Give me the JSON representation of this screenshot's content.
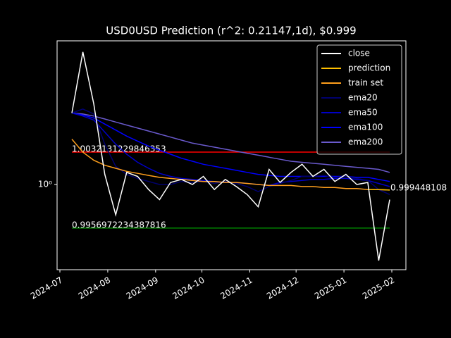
{
  "chart_data": {
    "type": "line",
    "title": "USD0USD Prediction (r^2: 0.21147,1d), $0.999",
    "log_y": true,
    "ylim": [
      0.9916,
      1.01432
    ],
    "yticks": [
      {
        "value": 1,
        "label": "10⁰"
      }
    ],
    "xlim": [
      "2024-07",
      "2025-02"
    ],
    "xticks": [
      "2024-07",
      "2024-08",
      "2024-09",
      "2024-10",
      "2024-11",
      "2024-12",
      "2025-01",
      "2025-02"
    ],
    "legend": "upper right",
    "series": [
      {
        "name": "close",
        "color": "#ffffff",
        "values": [
          1.0071,
          1.0132,
          1.008,
          1.001,
          0.997,
          1.0012,
          1.0008,
          0.9995,
          0.9985,
          1.0002,
          1.0005,
          1.0,
          1.0008,
          0.9995,
          1.0005,
          0.9998,
          0.999,
          0.9978,
          1.0015,
          1.0002,
          1.0012,
          1.002,
          1.0008,
          1.0015,
          1.0003,
          1.001,
          1.0,
          1.0002,
          0.9925,
          0.9985
        ]
      },
      {
        "name": "prediction",
        "color": "#ffc000",
        "values": [
          null,
          null,
          null,
          null,
          null,
          null,
          null,
          null,
          null,
          null,
          null,
          null,
          null,
          null,
          null,
          null,
          null,
          null,
          null,
          null,
          null,
          null,
          null,
          null,
          null,
          null,
          null,
          0.9995,
          0.9995,
          0.99945
        ]
      },
      {
        "name": "train set",
        "color": "#ff9f1c",
        "values": [
          1.0045,
          1.0032,
          1.0024,
          1.0019,
          1.0016,
          1.0013,
          1.0011,
          1.0009,
          1.0007,
          1.0006,
          1.0005,
          1.0004,
          1.0003,
          1.0003,
          1.0002,
          1.0002,
          1.0001,
          1.0,
          0.9999,
          0.9999,
          0.9999,
          0.9998,
          0.9998,
          0.9997,
          0.9997,
          0.9996,
          0.9996,
          0.9995,
          0.9995,
          0.99945
        ]
      },
      {
        "name": "ema20",
        "color": "#00006e",
        "values": [
          1.0071,
          1.0075,
          1.007,
          1.004,
          1.0018,
          1.001,
          1.0006,
          1.0003,
          1.0,
          1.0,
          1.0003,
          1.0002,
          1.0003,
          1.0001,
          1.0003,
          1.0001,
          0.9998,
          0.9993,
          0.9998,
          1.0001,
          1.0004,
          1.0008,
          1.0008,
          1.0009,
          1.0007,
          1.0008,
          1.0006,
          1.0004,
          0.9995,
          0.999
        ]
      },
      {
        "name": "ema50",
        "color": "#0000c8",
        "values": [
          1.0071,
          1.0068,
          1.0064,
          1.0052,
          1.004,
          1.003,
          1.0022,
          1.0016,
          1.0011,
          1.0008,
          1.0006,
          1.0005,
          1.0004,
          1.0003,
          1.0002,
          1.0002,
          1.0001,
          1.0,
          0.9999,
          1.0002,
          1.0003,
          1.0004,
          1.0005,
          1.0005,
          1.0006,
          1.0006,
          1.0005,
          1.0004,
          1.0001,
          0.9998
        ]
      },
      {
        "name": "ema100",
        "color": "#0000ff",
        "values": [
          1.0071,
          1.0069,
          1.0066,
          1.006,
          1.0054,
          1.0048,
          1.0043,
          1.0038,
          1.0034,
          1.003,
          1.0026,
          1.0023,
          1.002,
          1.0018,
          1.0016,
          1.0014,
          1.0012,
          1.001,
          1.0009,
          1.0008,
          1.0008,
          1.0008,
          1.0008,
          1.0008,
          1.0008,
          1.0008,
          1.0007,
          1.0007,
          1.0005,
          1.0003
        ]
      },
      {
        "name": "ema200",
        "color": "#6a5acd",
        "values": [
          1.0071,
          1.007,
          1.0068,
          1.0065,
          1.0062,
          1.0059,
          1.0056,
          1.0053,
          1.005,
          1.0047,
          1.0044,
          1.0041,
          1.0039,
          1.0037,
          1.0035,
          1.0033,
          1.0031,
          1.0029,
          1.0027,
          1.0025,
          1.0023,
          1.0022,
          1.0021,
          1.002,
          1.0019,
          1.0018,
          1.0017,
          1.0016,
          1.0015,
          1.0012
        ]
      }
    ],
    "hlines": [
      {
        "value": 1.0032131229846353,
        "color": "#ff0000"
      },
      {
        "value": 0.9956972234387816,
        "color": "#008000"
      }
    ],
    "end_value": 0.999448108
  }
}
